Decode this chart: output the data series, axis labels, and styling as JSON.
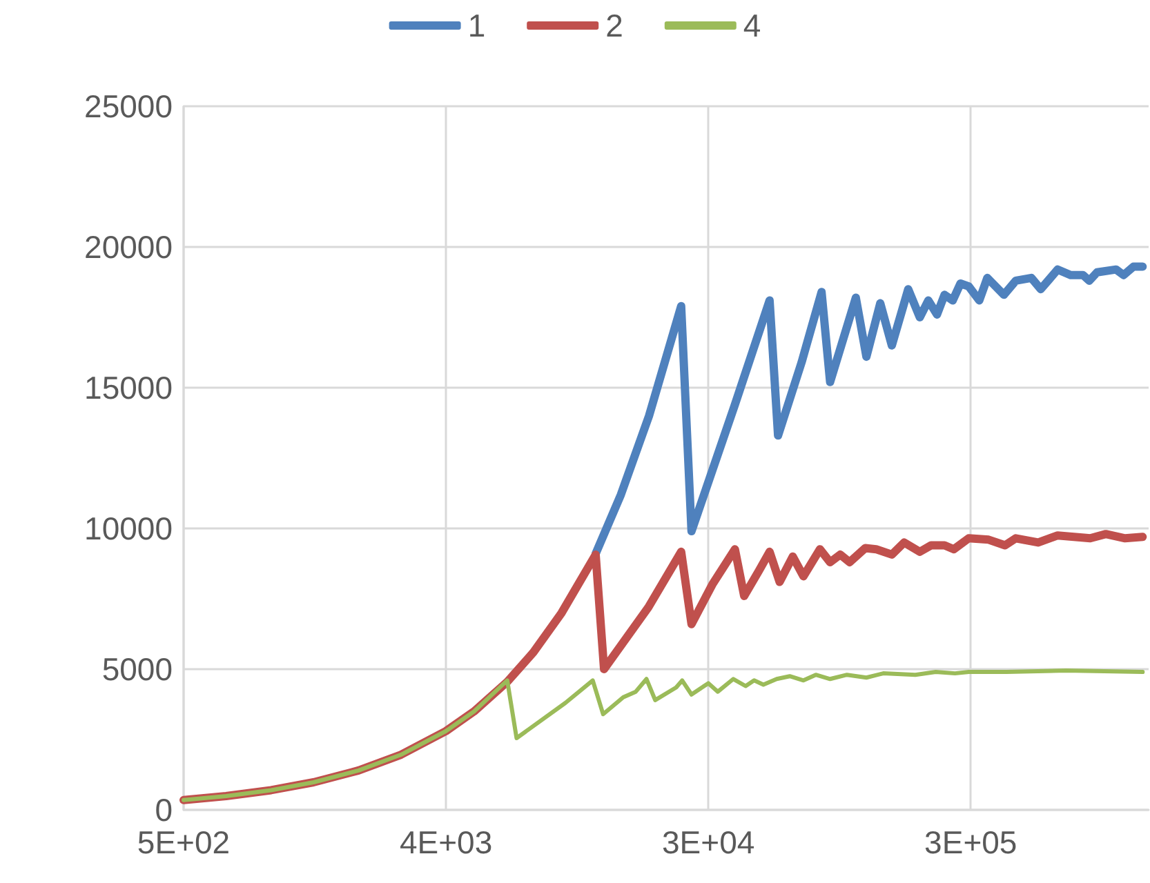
{
  "chart_data": {
    "type": "line",
    "log": "x",
    "marker": "none",
    "grid": true,
    "legend": "top",
    "xlim": [
      500,
      1048576
    ],
    "xticks": [
      {
        "value": 500,
        "label": "5E+02"
      },
      {
        "value": 4000,
        "label": "4E+03"
      },
      {
        "value": 32000,
        "label": "3E+04"
      },
      {
        "value": 256000,
        "label": "3E+05"
      }
    ],
    "ylim": [
      0,
      25000
    ],
    "yticks": [
      0,
      5000,
      10000,
      15000,
      20000,
      25000
    ],
    "series": [
      {
        "name": "1",
        "color": "#4f81bd",
        "x": [
          13100,
          16000,
          20000,
          25800,
          28000,
          39500,
          52000,
          55600,
          67000,
          78500,
          84000,
          103000,
          112000,
          125000,
          137000,
          156000,
          171000,
          183000,
          196000,
          208000,
          222000,
          236000,
          252000,
          274000,
          292000,
          333000,
          366000,
          414000,
          446000,
          510000,
          565000,
          624000,
          655000,
          697000,
          810000,
          860000,
          930000,
          1000000
        ],
        "values": [
          9100,
          11200,
          14000,
          17900,
          9900,
          14400,
          18100,
          13300,
          15900,
          18400,
          15200,
          18200,
          16100,
          18000,
          16500,
          18500,
          17500,
          18100,
          17600,
          18300,
          18100,
          18700,
          18600,
          18100,
          18900,
          18300,
          18800,
          18900,
          18500,
          19200,
          19000,
          19000,
          18800,
          19100,
          19200,
          19000,
          19300,
          19300
        ]
      },
      {
        "name": "2",
        "color": "#c0504d",
        "x": [
          500,
          700,
          1000,
          1400,
          2000,
          2800,
          4000,
          5000,
          6500,
          8000,
          10000,
          13100,
          14000,
          19900,
          25800,
          28000,
          33000,
          39500,
          42500,
          47800,
          52000,
          56300,
          62500,
          68000,
          77500,
          84000,
          91000,
          98000,
          111000,
          121000,
          137000,
          151000,
          171000,
          187000,
          208000,
          224000,
          252000,
          295000,
          336000,
          366000,
          437000,
          510000,
          660000,
          747000,
          870000,
          1000000
        ],
        "values": [
          350,
          490,
          700,
          980,
          1400,
          1960,
          2800,
          3500,
          4550,
          5600,
          7000,
          9070,
          5000,
          7200,
          9170,
          6600,
          8000,
          9260,
          7600,
          8500,
          9170,
          8100,
          9000,
          8300,
          9260,
          8800,
          9070,
          8800,
          9300,
          9260,
          9070,
          9500,
          9170,
          9400,
          9400,
          9260,
          9650,
          9600,
          9400,
          9650,
          9500,
          9750,
          9650,
          9800,
          9650,
          9700
        ]
      },
      {
        "name": "4",
        "color": "#9bbb59",
        "x": [
          500,
          700,
          1000,
          1400,
          2000,
          2800,
          4000,
          5000,
          6500,
          7000,
          10300,
          12800,
          13900,
          16300,
          18000,
          19600,
          21000,
          24800,
          26000,
          28000,
          32000,
          34500,
          39000,
          43000,
          46000,
          49500,
          55000,
          61000,
          68000,
          75000,
          84000,
          96000,
          112000,
          128000,
          165000,
          194000,
          226000,
          252000,
          340000,
          545000,
          1000000
        ],
        "values": [
          350,
          490,
          700,
          980,
          1400,
          1960,
          2800,
          3500,
          4600,
          2550,
          3800,
          4600,
          3400,
          4000,
          4200,
          4650,
          3900,
          4350,
          4600,
          4100,
          4500,
          4200,
          4650,
          4400,
          4600,
          4450,
          4650,
          4750,
          4600,
          4800,
          4650,
          4800,
          4700,
          4850,
          4800,
          4900,
          4850,
          4900,
          4900,
          4950,
          4900
        ]
      }
    ]
  }
}
